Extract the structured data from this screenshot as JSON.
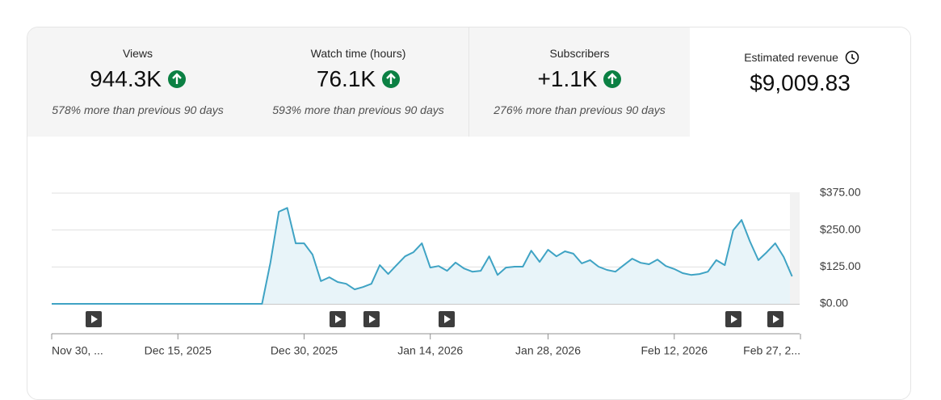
{
  "cards": [
    {
      "label": "Views",
      "value": "944.3K",
      "change": "578% more than previous 90 days"
    },
    {
      "label": "Watch time (hours)",
      "value": "76.1K",
      "change": "593% more than previous 90 days"
    },
    {
      "label": "Subscribers",
      "value": "+1.1K",
      "change": "276% more than previous 90 days"
    },
    {
      "label": "Estimated revenue",
      "value": "$9,009.83"
    }
  ],
  "chart_data": {
    "type": "line",
    "color": "#3fa3c4",
    "fill": "#e8f4f9",
    "grid": true,
    "x": [
      "2025-11-30",
      "2025-12-01",
      "2025-12-02",
      "2025-12-03",
      "2025-12-04",
      "2025-12-05",
      "2025-12-06",
      "2025-12-07",
      "2025-12-08",
      "2025-12-09",
      "2025-12-10",
      "2025-12-11",
      "2025-12-12",
      "2025-12-13",
      "2025-12-14",
      "2025-12-15",
      "2025-12-16",
      "2025-12-17",
      "2025-12-18",
      "2025-12-19",
      "2025-12-20",
      "2025-12-21",
      "2025-12-22",
      "2025-12-23",
      "2025-12-24",
      "2025-12-25",
      "2025-12-26",
      "2025-12-27",
      "2025-12-28",
      "2025-12-29",
      "2025-12-30",
      "2025-12-31",
      "2026-01-01",
      "2026-01-02",
      "2026-01-03",
      "2026-01-04",
      "2026-01-05",
      "2026-01-06",
      "2026-01-07",
      "2026-01-08",
      "2026-01-09",
      "2026-01-10",
      "2026-01-11",
      "2026-01-12",
      "2026-01-13",
      "2026-01-14",
      "2026-01-15",
      "2026-01-16",
      "2026-01-17",
      "2026-01-18",
      "2026-01-19",
      "2026-01-20",
      "2026-01-21",
      "2026-01-22",
      "2026-01-23",
      "2026-01-24",
      "2026-01-25",
      "2026-01-26",
      "2026-01-27",
      "2026-01-28",
      "2026-01-29",
      "2026-01-30",
      "2026-01-31",
      "2026-02-01",
      "2026-02-02",
      "2026-02-03",
      "2026-02-04",
      "2026-02-05",
      "2026-02-06",
      "2026-02-07",
      "2026-02-08",
      "2026-02-09",
      "2026-02-10",
      "2026-02-11",
      "2026-02-12",
      "2026-02-13",
      "2026-02-14",
      "2026-02-15",
      "2026-02-16",
      "2026-02-17",
      "2026-02-18",
      "2026-02-19",
      "2026-02-20",
      "2026-02-21",
      "2026-02-22",
      "2026-02-23",
      "2026-02-24",
      "2026-02-25",
      "2026-02-26"
    ],
    "values": [
      0,
      0,
      0,
      0,
      0,
      0,
      0,
      0,
      0,
      0,
      0,
      0,
      0,
      0,
      0,
      0,
      0,
      0,
      0,
      0,
      0,
      0,
      0,
      0,
      0,
      0,
      140,
      312,
      325,
      205,
      205,
      167,
      77,
      90,
      74,
      68,
      49,
      57,
      68,
      131,
      101,
      131,
      161,
      175,
      205,
      123,
      128,
      112,
      140,
      120,
      109,
      112,
      161,
      98,
      123,
      126,
      126,
      180,
      142,
      183,
      161,
      178,
      170,
      137,
      148,
      126,
      115,
      109,
      131,
      153,
      139,
      134,
      150,
      128,
      118,
      104,
      98,
      101,
      109,
      148,
      131,
      249,
      284,
      211,
      148,
      175,
      205,
      159,
      93
    ],
    "xlim": [
      "2025-11-30",
      "2026-02-27"
    ],
    "xticks": [
      {
        "value": "2025-11-30",
        "label": "Nov 30, ..."
      },
      {
        "value": "2025-12-15",
        "label": "Dec 15, 2025"
      },
      {
        "value": "2025-12-30",
        "label": "Dec 30, 2025"
      },
      {
        "value": "2026-01-14",
        "label": "Jan 14, 2026"
      },
      {
        "value": "2026-01-28",
        "label": "Jan 28, 2026"
      },
      {
        "value": "2026-02-12",
        "label": "Feb 12, 2026"
      },
      {
        "value": "2026-02-27",
        "label": "Feb 27, 2..."
      }
    ],
    "ylim": [
      0,
      375
    ],
    "yticks": [
      {
        "value": 0,
        "label": "$0.00"
      },
      {
        "value": 125,
        "label": "$125.00"
      },
      {
        "value": 250,
        "label": "$250.00"
      },
      {
        "value": 375,
        "label": "$375.00"
      }
    ]
  }
}
